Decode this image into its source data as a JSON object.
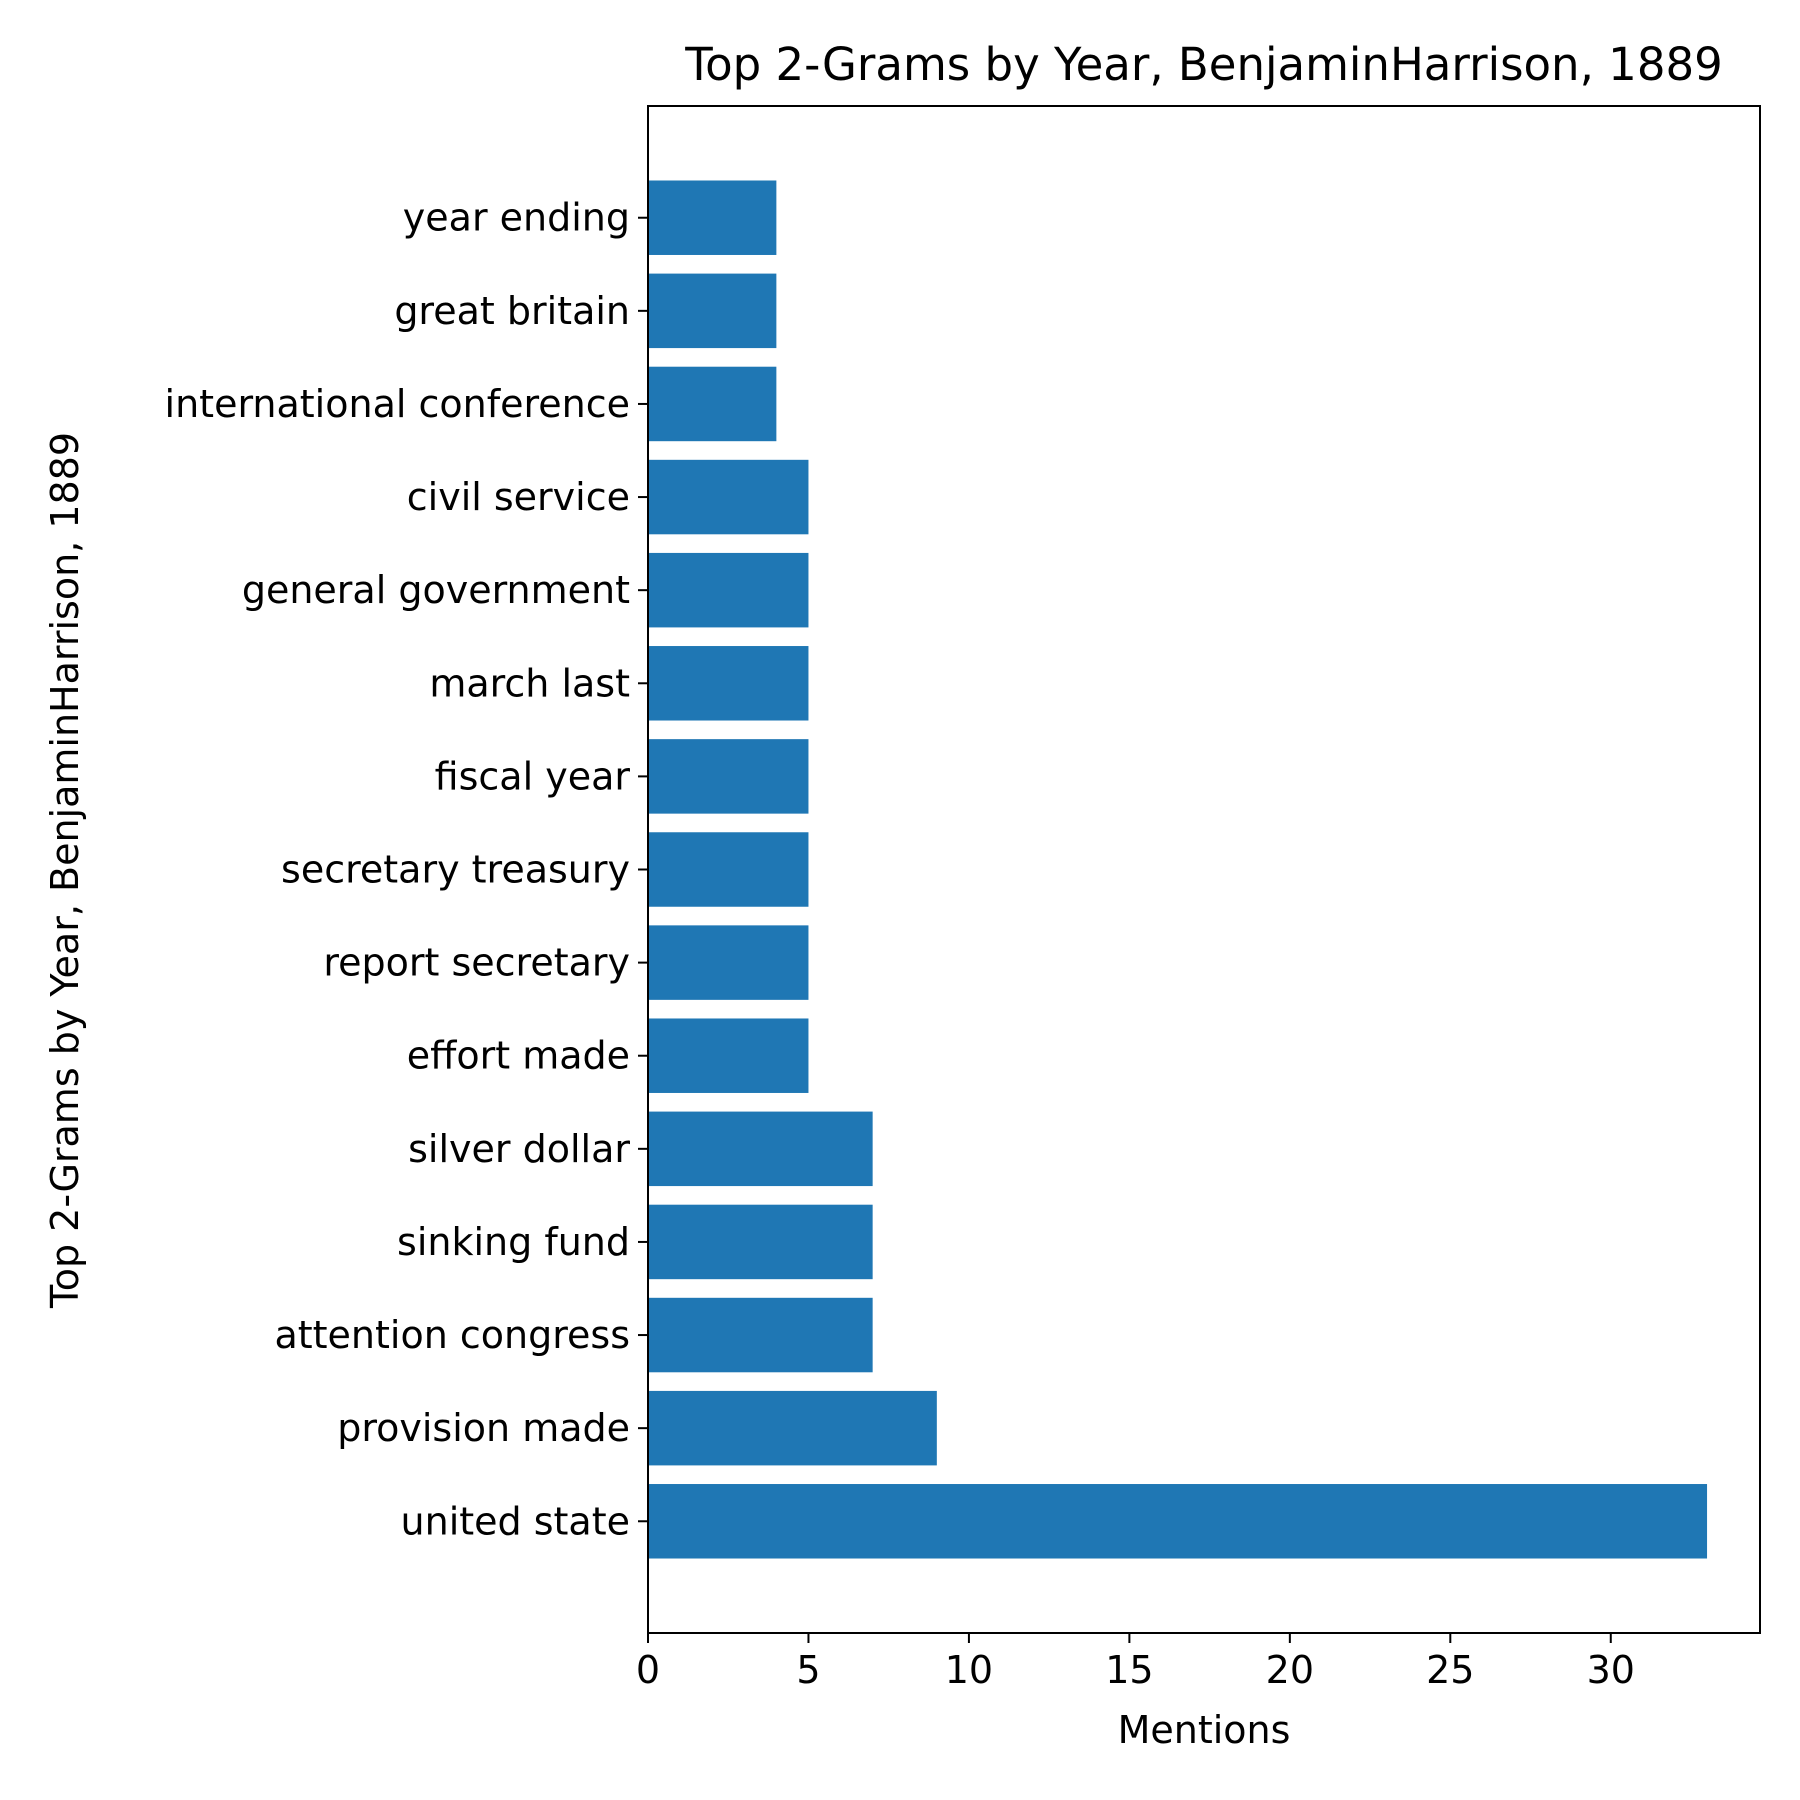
{
  "chart_data": {
    "type": "bar",
    "orientation": "horizontal",
    "title": "Top 2-Grams by Year, BenjaminHarrison, 1889",
    "xlabel": "Mentions",
    "ylabel": "Top 2-Grams by Year, BenjaminHarrison, 1889",
    "categories": [
      "united state",
      "provision made",
      "attention congress",
      "sinking fund",
      "silver dollar",
      "effort made",
      "report secretary",
      "secretary treasury",
      "fiscal year",
      "march last",
      "general government",
      "civil service",
      "international conference",
      "great britain",
      "year ending"
    ],
    "values": [
      33,
      9,
      7,
      7,
      7,
      5,
      5,
      5,
      5,
      5,
      5,
      5,
      4,
      4,
      4
    ],
    "xlim": [
      0,
      34.65
    ],
    "xticks": [
      0,
      5,
      10,
      15,
      20,
      25,
      30
    ],
    "grid": false,
    "bar_color": "#1f77b4"
  }
}
